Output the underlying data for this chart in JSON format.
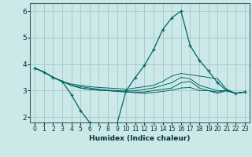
{
  "xlabel": "Humidex (Indice chaleur)",
  "bg_color": "#cce8e8",
  "grid_color": "#aacccc",
  "line_color": "#006666",
  "ylim": [
    1.8,
    6.3
  ],
  "xlim": [
    -0.5,
    23.5
  ],
  "yticks": [
    2,
    3,
    4,
    5,
    6
  ],
  "xticks": [
    0,
    1,
    2,
    3,
    4,
    5,
    6,
    7,
    8,
    9,
    10,
    11,
    12,
    13,
    14,
    15,
    16,
    17,
    18,
    19,
    20,
    21,
    22,
    23
  ],
  "series": [
    [
      3.85,
      3.7,
      3.5,
      3.35,
      2.85,
      2.25,
      1.8,
      1.65,
      1.6,
      1.75,
      3.0,
      3.5,
      3.95,
      4.55,
      5.3,
      5.75,
      6.0,
      4.7,
      4.15,
      3.75,
      3.3,
      3.0,
      2.9,
      2.95
    ],
    [
      3.85,
      3.7,
      3.5,
      3.35,
      3.25,
      3.2,
      3.15,
      3.12,
      3.1,
      3.08,
      3.05,
      3.1,
      3.15,
      3.2,
      3.35,
      3.55,
      3.65,
      3.6,
      3.55,
      3.5,
      3.45,
      3.05,
      2.9,
      2.95
    ],
    [
      3.85,
      3.7,
      3.5,
      3.35,
      3.2,
      3.15,
      3.1,
      3.05,
      3.02,
      3.0,
      2.98,
      3.0,
      3.05,
      3.1,
      3.2,
      3.3,
      3.5,
      3.45,
      3.2,
      3.1,
      3.0,
      3.0,
      2.9,
      2.95
    ],
    [
      3.85,
      3.7,
      3.5,
      3.35,
      3.2,
      3.1,
      3.05,
      3.02,
      3.0,
      2.98,
      2.95,
      2.95,
      2.95,
      3.0,
      3.05,
      3.1,
      3.3,
      3.35,
      3.1,
      3.0,
      2.95,
      3.0,
      2.9,
      2.95
    ],
    [
      3.85,
      3.7,
      3.5,
      3.35,
      3.2,
      3.1,
      3.05,
      3.02,
      3.0,
      2.97,
      2.95,
      2.92,
      2.9,
      2.93,
      2.97,
      3.02,
      3.1,
      3.12,
      3.0,
      3.0,
      2.9,
      3.0,
      2.9,
      2.95
    ]
  ]
}
